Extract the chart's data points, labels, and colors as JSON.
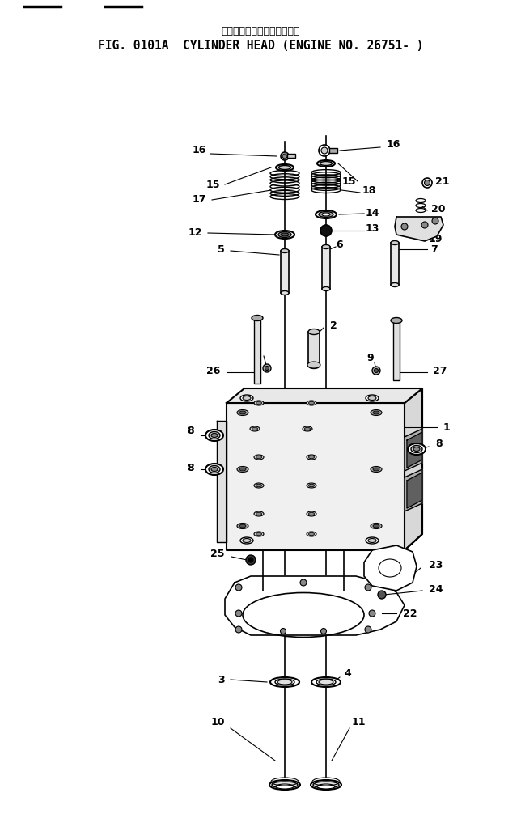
{
  "title_jp": "シリンダ　ヘッド　適用号機",
  "title_en": "FIG. 0101A  CYLINDER HEAD (ENGINE NO. 26751- )",
  "bg_color": "#ffffff",
  "line_color": "#000000",
  "title_fontsize": 9,
  "subtitle_fontsize": 10.5,
  "part_label_fontsize": 9
}
